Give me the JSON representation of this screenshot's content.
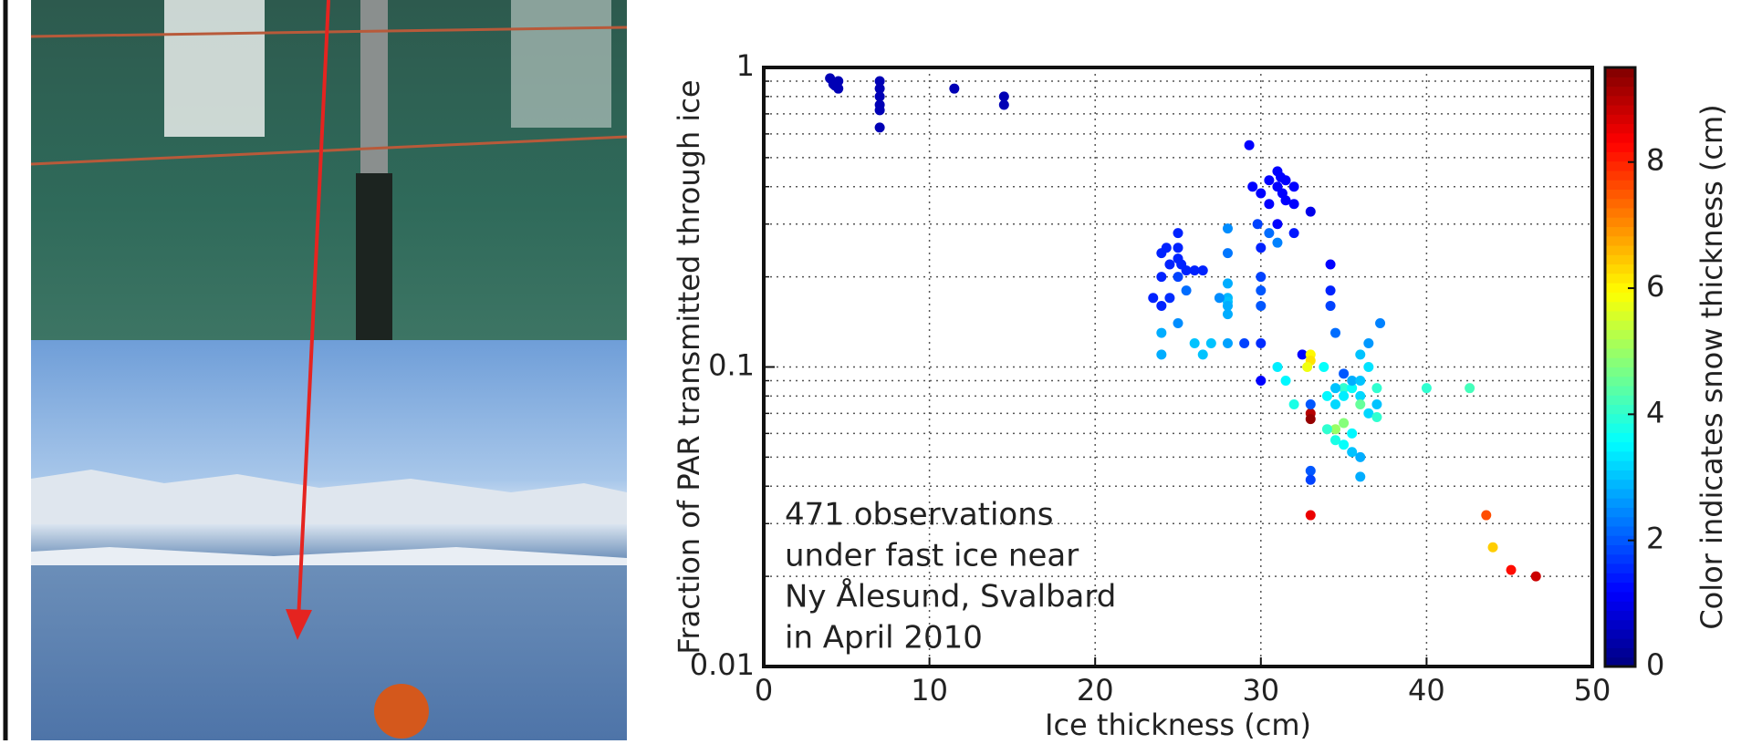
{
  "chart_data": {
    "type": "scatter",
    "xlabel": "Ice thickness (cm)",
    "ylabel": "Fraction of PAR transmitted through ice",
    "colorbar_label": "Color indicates snow thickness (cm)",
    "annotation": [
      "471 observations",
      "under fast ice near",
      "Ny Ålesund, Svalbard",
      "in April 2010"
    ],
    "xlim": [
      0,
      50
    ],
    "xticks": [
      0,
      10,
      20,
      30,
      40,
      50
    ],
    "ylim": [
      0.01,
      1
    ],
    "yscale": "log",
    "yticks": [
      0.01,
      0.1,
      1
    ],
    "yminorticks": [
      0.02,
      0.03,
      0.04,
      0.05,
      0.06,
      0.07,
      0.08,
      0.09,
      0.2,
      0.3,
      0.4,
      0.5,
      0.6,
      0.7,
      0.8,
      0.9
    ],
    "grid": true,
    "colormap": "jet",
    "clim": [
      0,
      9.5
    ],
    "colorbar_ticks": [
      0,
      2,
      4,
      6,
      8
    ],
    "x": [
      4,
      4.2,
      4.5,
      4.5,
      4.3,
      7,
      7,
      7,
      7,
      7,
      7,
      11.5,
      14.5,
      14.5,
      23.5,
      24,
      24,
      24.3,
      24.5,
      25,
      25,
      25,
      25.2,
      25.5,
      26,
      26.5,
      24.5,
      25,
      25.5,
      24,
      24,
      24,
      26,
      26.5,
      27,
      25,
      28,
      28,
      28,
      28,
      28,
      28,
      28,
      28,
      27.5,
      29.3,
      29.5,
      30,
      30.5,
      31,
      31,
      31.2,
      31.3,
      31.5,
      31.5,
      32,
      32,
      30.5,
      31,
      30,
      30,
      30,
      30,
      30.5,
      32,
      33,
      29.8,
      31,
      29,
      30,
      30,
      31,
      31.5,
      32.5,
      33,
      33,
      32.8,
      33,
      33,
      33,
      33,
      33,
      33,
      32,
      34.2,
      34.2,
      34.2,
      34.5,
      34,
      34.5,
      35,
      35,
      35.5,
      35.5,
      36,
      36,
      36,
      36.5,
      37,
      37,
      36.5,
      36,
      35,
      34.5,
      34,
      34.5,
      35,
      35.5,
      36,
      35.5,
      36,
      37,
      37.2,
      36.5,
      35,
      34.5,
      33.8,
      40,
      42.6,
      43.6,
      44,
      45.1,
      46.6
    ],
    "values": [
      0.92,
      0.88,
      0.85,
      0.9,
      0.87,
      0.9,
      0.85,
      0.8,
      0.75,
      0.72,
      0.63,
      0.85,
      0.8,
      0.75,
      0.17,
      0.24,
      0.2,
      0.25,
      0.22,
      0.28,
      0.25,
      0.23,
      0.22,
      0.21,
      0.21,
      0.21,
      0.17,
      0.2,
      0.18,
      0.16,
      0.13,
      0.11,
      0.12,
      0.11,
      0.12,
      0.14,
      0.19,
      0.17,
      0.165,
      0.16,
      0.15,
      0.12,
      0.24,
      0.29,
      0.17,
      0.55,
      0.4,
      0.38,
      0.42,
      0.45,
      0.4,
      0.43,
      0.38,
      0.36,
      0.42,
      0.4,
      0.35,
      0.35,
      0.3,
      0.25,
      0.2,
      0.18,
      0.16,
      0.28,
      0.28,
      0.33,
      0.3,
      0.26,
      0.12,
      0.12,
      0.09,
      0.1,
      0.09,
      0.11,
      0.11,
      0.105,
      0.1,
      0.07,
      0.067,
      0.075,
      0.045,
      0.042,
      0.032,
      0.075,
      0.22,
      0.18,
      0.16,
      0.13,
      0.08,
      0.075,
      0.085,
      0.08,
      0.085,
      0.09,
      0.09,
      0.08,
      0.11,
      0.1,
      0.085,
      0.075,
      0.07,
      0.075,
      0.065,
      0.062,
      0.062,
      0.057,
      0.055,
      0.052,
      0.05,
      0.06,
      0.043,
      0.068,
      0.14,
      0.12,
      0.095,
      0.085,
      0.1,
      0.085,
      0.085,
      0.032,
      0.025,
      0.021,
      0.02
    ],
    "snow": [
      0.5,
      0.5,
      0.5,
      0.5,
      0.5,
      0.5,
      0.5,
      0.5,
      0.5,
      0.5,
      0.5,
      0.5,
      0.5,
      0.5,
      1.5,
      1.5,
      1.5,
      1.5,
      1.5,
      1.5,
      1.5,
      1.5,
      1.5,
      1.5,
      1.5,
      1.5,
      1.6,
      1.8,
      2.2,
      1.5,
      2.8,
      2.8,
      3,
      3,
      3,
      2.5,
      2.8,
      2.9,
      3,
      2.8,
      2.8,
      2.7,
      2.3,
      2.5,
      2.5,
      1.2,
      1.2,
      1.2,
      1.2,
      1.2,
      1.2,
      1.2,
      1.2,
      1.2,
      1.2,
      1.2,
      1.2,
      1.2,
      1.2,
      1.5,
      1.8,
      2,
      2,
      2.2,
      1.4,
      1,
      1.8,
      2.4,
      1.8,
      1.6,
      1.2,
      3.4,
      3.5,
      1.2,
      6,
      6.2,
      5.8,
      9,
      9.3,
      2,
      2,
      1.8,
      8.5,
      3.8,
      1.2,
      1.5,
      1.8,
      2.2,
      3.5,
      3.2,
      4,
      3.4,
      3.6,
      2.8,
      3,
      3.2,
      3,
      3.3,
      4,
      3,
      3.2,
      4.5,
      4.8,
      5,
      4,
      3.8,
      3.6,
      3,
      2.8,
      3.5,
      2.8,
      4,
      2.4,
      2.6,
      2,
      3,
      3.6,
      4,
      4.2,
      7.6,
      6.4,
      8.2,
      8.8
    ]
  }
}
